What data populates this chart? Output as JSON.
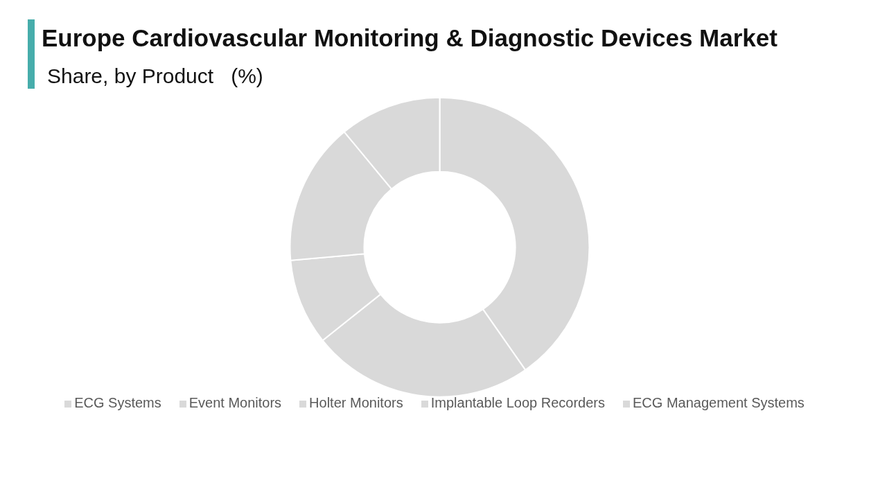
{
  "chart_data": {
    "type": "donut",
    "title": "Europe Cardiovascular Monitoring & Diagnostic Devices Market",
    "subtitle": "Share, by Product   (%)",
    "categories": [
      "ECG Systems",
      "Event Monitors",
      "Holter Monitors",
      "Implantable Loop Recorders",
      "ECG Management Systems"
    ],
    "values": [
      40.3,
      24.0,
      9.3,
      15.4,
      11.0
    ],
    "colors": [
      "#d9d9d9",
      "#d9d9d9",
      "#d9d9d9",
      "#d9d9d9",
      "#d9d9d9"
    ],
    "legend": "bottom"
  }
}
